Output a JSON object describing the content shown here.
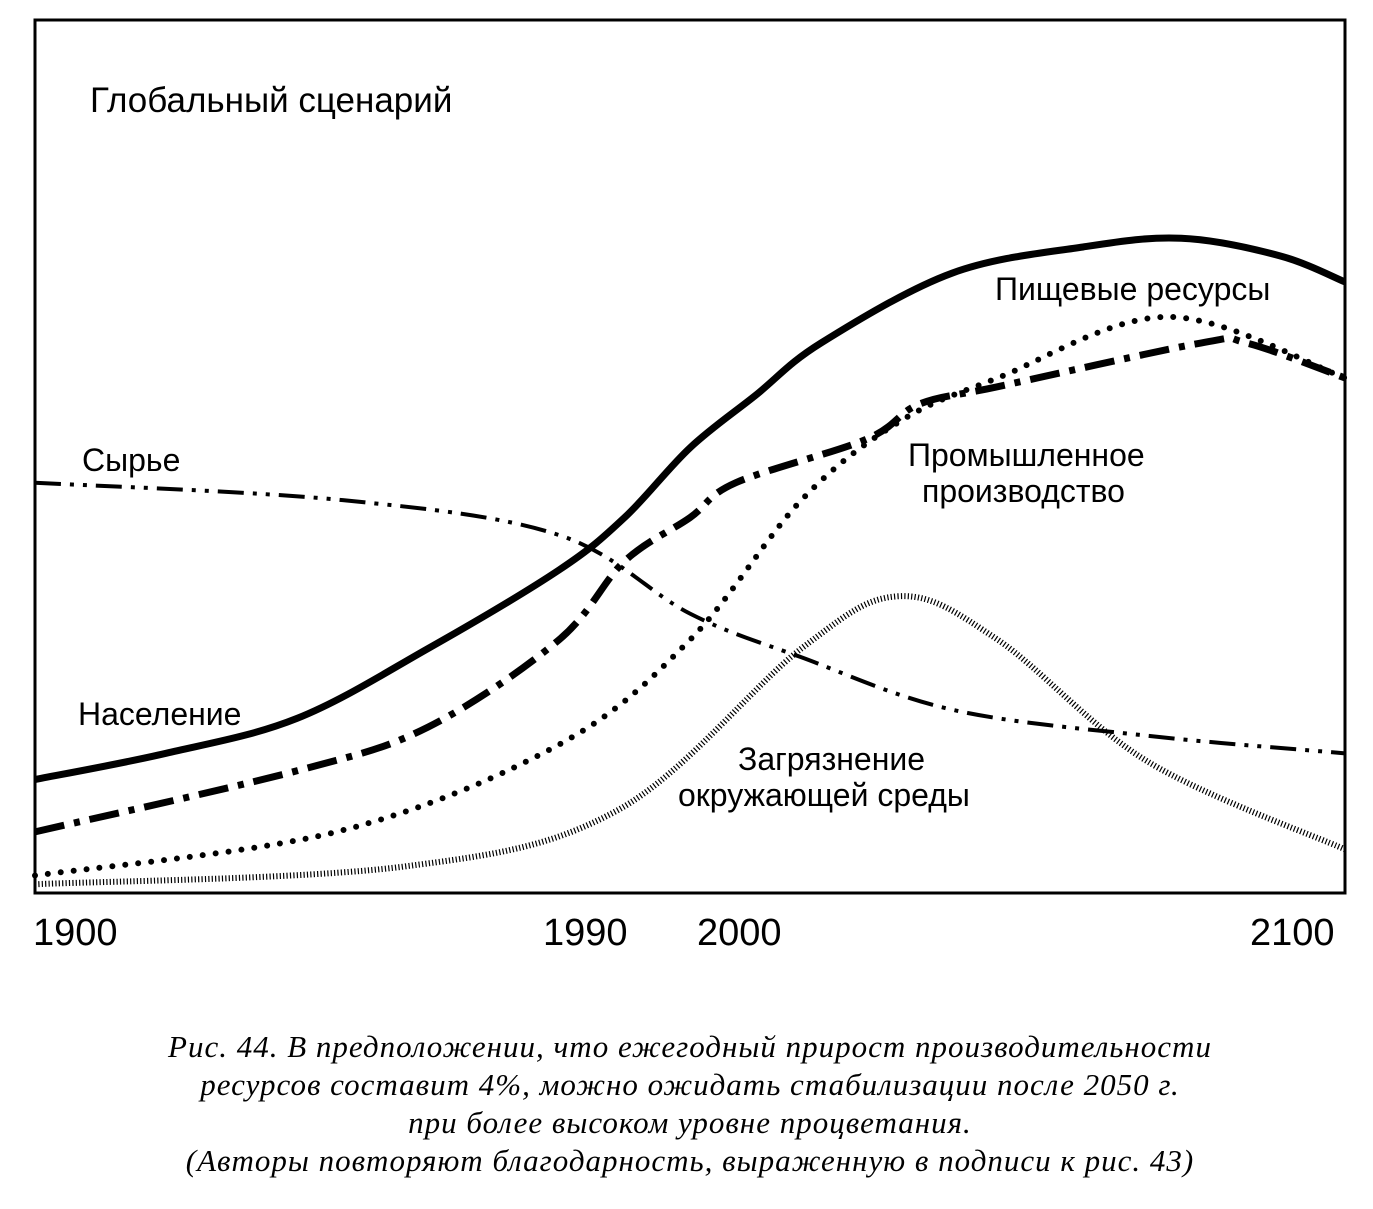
{
  "chart_data": {
    "type": "line",
    "title": "Глобальный сценарий",
    "xlabel": "",
    "ylabel": "",
    "xlim": [
      1900,
      2100
    ],
    "ylim": [
      0,
      100
    ],
    "grid": false,
    "x_ticks": [
      "1900",
      "1990",
      "2000",
      "2100"
    ],
    "series": [
      {
        "name": "Население",
        "style": "solid",
        "x": [
          1900,
          1920,
          1940,
          1960,
          1980,
          1990,
          2000,
          2010,
          2020,
          2040,
          2060,
          2075,
          2090,
          2100
        ],
        "values": [
          13,
          16,
          20,
          28,
          37,
          43,
          51,
          57,
          63,
          71,
          74,
          75,
          73,
          70
        ]
      },
      {
        "name": "Промышленное производство",
        "style": "dash-dot",
        "x": [
          1900,
          1940,
          1960,
          1980,
          1990,
          2000,
          2007,
          2027,
          2035,
          2047,
          2078,
          2085,
          2100
        ],
        "values": [
          7,
          14,
          19,
          29,
          38,
          43,
          47,
          52,
          56,
          58,
          63,
          63,
          59
        ]
      },
      {
        "name": "Пищевые ресурсы",
        "style": "dotted",
        "x": [
          1900,
          1946,
          1980,
          2000,
          2017,
          2032,
          2047,
          2073,
          2100
        ],
        "values": [
          2,
          7,
          17,
          29,
          45,
          54,
          59,
          66,
          59
        ]
      },
      {
        "name": "Сырье",
        "style": "dash-dot-dot",
        "x": [
          1900,
          1947,
          1980,
          2000,
          2017,
          2040,
          2070,
          2100
        ],
        "values": [
          47,
          45,
          41,
          32,
          27,
          21,
          18,
          16
        ]
      },
      {
        "name": "Загрязнение окружающей среды",
        "style": "hatched",
        "x": [
          1900,
          1956,
          1989,
          2017,
          2032,
          2047,
          2070,
          2100
        ],
        "values": [
          1,
          3,
          9.5,
          28,
          34,
          29,
          15,
          5
        ]
      }
    ],
    "annotations": {
      "population": "Население",
      "industry_1": "Промышленное",
      "industry_2": "производство",
      "food": "Пищевые ресурсы",
      "raw": "Сырье",
      "pollution_1": "Загрязнение",
      "pollution_2": "окружающей среды"
    }
  },
  "caption": [
    "Рис. 44. В предположении, что ежегодный прирост производительности",
    "ресурсов составит 4%, можно ожидать стабилизации после 2050 г.",
    "при более высоком уровне процветания.",
    "(Авторы повторяют благодарность, выраженную в подписи к рис. 43)"
  ]
}
